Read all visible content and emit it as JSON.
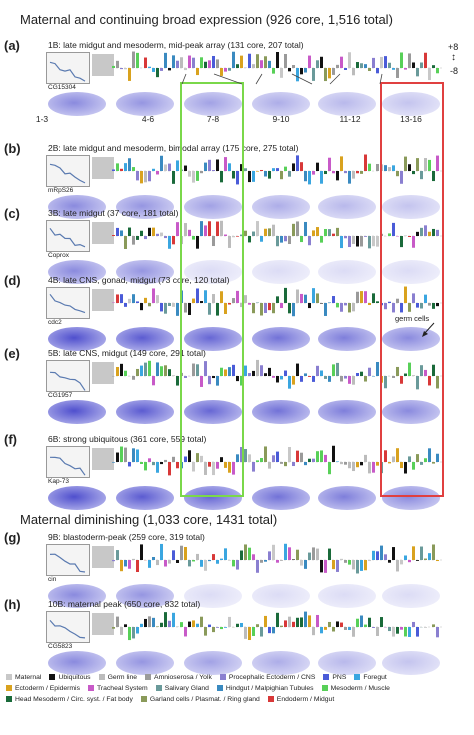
{
  "sections": {
    "maternal_continuing": "Maternal and continuing broad expression (926 core, 1,516 total)",
    "maternal_diminishing": "Maternal diminishing (1,033 core, 1431 total)"
  },
  "scale": {
    "top": "+8",
    "bottom": "-8"
  },
  "stages": [
    "1-3",
    "4-6",
    "7-8",
    "9-10",
    "11-12",
    "13-16"
  ],
  "panels": [
    {
      "label": "(a)",
      "desc": "1B: late midgut and mesoderm, mid-peak array (131 core, 207 total)",
      "gene": "CG15304",
      "seed": 1
    },
    {
      "label": "(b)",
      "desc": "2B: late midgut and mesoderm,  bimodal array (175 core, 275 total)",
      "gene": "mRpS26",
      "seed": 2
    },
    {
      "label": "(c)",
      "desc": "3B: late midgut (37 core, 181 total)",
      "gene": "Coprox",
      "seed": 3
    },
    {
      "label": "(d)",
      "desc": "4B: late CNS, gonad, midgut (73 core, 120 total)",
      "gene": "cdc2",
      "seed": 4
    },
    {
      "label": "(e)",
      "desc": "5B: late CNS, midgut (149 core, 291 total)",
      "gene": "CG1957",
      "seed": 5
    },
    {
      "label": "(f)",
      "desc": "6B: strong ubiquitous (361 core, 559 total)",
      "gene": "Kap-73",
      "seed": 6
    },
    {
      "label": "(g)",
      "desc": "9B: blastoderm-peak (259 core, 319 total)",
      "gene": "cin",
      "seed": 7
    },
    {
      "label": "(h)",
      "desc": "10B: maternal peak (650 core, 832 total)",
      "gene": "CG5823",
      "seed": 8
    }
  ],
  "annotation": "germ cells",
  "legend": [
    {
      "label": "Maternal",
      "color": "#c8c8c8"
    },
    {
      "label": "Ubiquitous",
      "color": "#111111"
    },
    {
      "label": "Germ line",
      "color": "#bcbcbc"
    },
    {
      "label": "Amnioserosa / Yolk",
      "color": "#9a9a9a"
    },
    {
      "label": "Procephalic Ectoderm / CNS",
      "color": "#8a7fd0"
    },
    {
      "label": "PNS",
      "color": "#4a5bd8"
    },
    {
      "label": "Foregut",
      "color": "#3aa6e0"
    },
    {
      "label": "Ectoderm / Epidermis",
      "color": "#d9a21e"
    },
    {
      "label": "Tracheal System",
      "color": "#c85ac8"
    },
    {
      "label": "Salivary Gland",
      "color": "#6a9a9a"
    },
    {
      "label": "Hindgut / Malpighian Tubules",
      "color": "#3a8ac0"
    },
    {
      "label": "Mesoderm / Muscle",
      "color": "#58d058"
    },
    {
      "label": "Head Mesoderm / Circ. syst. / Fat body",
      "color": "#1a6a3a"
    },
    {
      "label": "Garland cells / Plasmat. / Ring gland",
      "color": "#8a9a5a"
    },
    {
      "label": "Endoderm / Midgut",
      "color": "#d83838"
    }
  ]
}
